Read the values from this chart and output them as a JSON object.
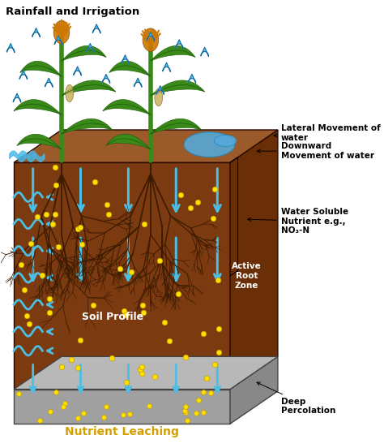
{
  "background_color": "#ffffff",
  "soil_color": "#7B3A10",
  "soil_top_color": "#9B5A2A",
  "soil_right_color": "#6B2F08",
  "deep_front_color": "#A0A0A0",
  "deep_right_color": "#888888",
  "deep_top_color": "#B8B8B8",
  "water_blue": "#4BBEE3",
  "nutrient_yellow": "#FFE000",
  "nutrient_edge": "#C8A000",
  "root_color": "#3A1A00",
  "plant_green": "#3A8A1A",
  "plant_dark": "#1A5A08",
  "tassel_color": "#CC7700",
  "rain_blue": "#45B8E8",
  "rain_edge": "#1A6090",
  "pool_color": "#55AADD",
  "text_black": "#000000",
  "text_yellow": "#D4A000",
  "labels": {
    "rainfall": "Rainfall and Irrigation",
    "lateral": "Lateral Movement of\nwater",
    "downward": "Downward\nMovement of water",
    "water_soluble": "Water Soluble\nNutrient e.g.,\nNO₃-N",
    "active_root": "Active\nRoot\nZone",
    "soil_profile": "Soil Profile",
    "deep_perc": "Deep\nPercolation",
    "nutrient_leaching": "Nutrient Leaching"
  },
  "figsize": [
    4.74,
    5.52
  ],
  "dpi": 100
}
